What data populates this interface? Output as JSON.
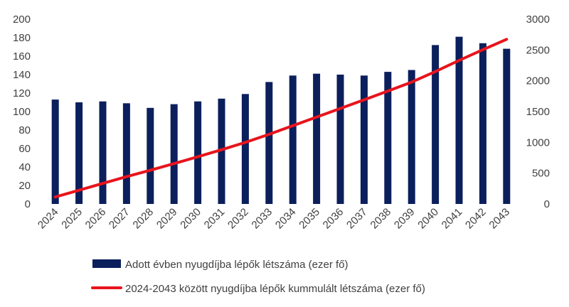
{
  "chart_data": {
    "type": "bar",
    "categories": [
      "2024",
      "2025",
      "2026",
      "2027",
      "2028",
      "2029",
      "2030",
      "2031",
      "2032",
      "2033",
      "2034",
      "2035",
      "2036",
      "2037",
      "2038",
      "2039",
      "2040",
      "2041",
      "2042",
      "2043"
    ],
    "series": [
      {
        "name": "Adott évben nyugdíjba lépők létszáma (ezer fő)",
        "type": "bar",
        "axis": "left",
        "color": "#0b1f5c",
        "values": [
          113,
          110,
          111,
          109,
          104,
          108,
          111,
          114,
          119,
          132,
          139,
          141,
          140,
          139,
          143,
          145,
          172,
          181,
          174,
          168
        ]
      },
      {
        "name": "2024-2043 között nyugdíjba lépők kummulált létszáma (ezer fő)",
        "type": "line",
        "axis": "right",
        "color": "#e8141c",
        "values": [
          113,
          223,
          334,
          443,
          547,
          655,
          766,
          880,
          999,
          1131,
          1270,
          1411,
          1551,
          1690,
          1833,
          1978,
          2150,
          2331,
          2505,
          2673
        ]
      }
    ],
    "y_left": {
      "min": 0,
      "max": 200,
      "step": 20
    },
    "y_right": {
      "min": 0,
      "max": 3000,
      "step": 500
    },
    "grid": false,
    "legend_position": "bottom"
  }
}
